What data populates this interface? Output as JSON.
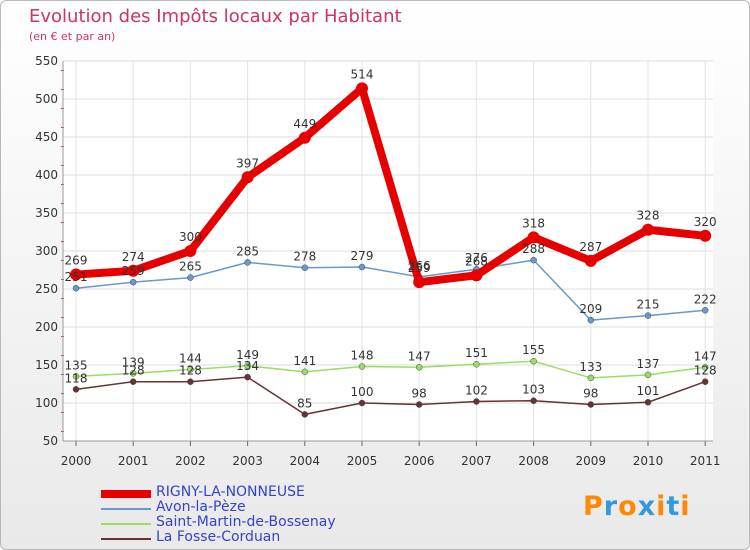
{
  "chart_data": {
    "type": "line",
    "title": "Evolution des Impôts locaux par Habitant",
    "subtitle": "(en € et par an)",
    "categories": [
      "2000",
      "2001",
      "2002",
      "2003",
      "2004",
      "2005",
      "2006",
      "2007",
      "2008",
      "2009",
      "2010",
      "2011"
    ],
    "y_ticks": [
      50,
      100,
      150,
      200,
      250,
      300,
      350,
      400,
      450,
      500,
      550
    ],
    "ylim": [
      50,
      550
    ],
    "grid": true,
    "series": [
      {
        "name": "RIGNY-LA-NONNEUSE",
        "color": "#e60000",
        "values": [
          269,
          274,
          300,
          397,
          449,
          514,
          259,
          268,
          318,
          287,
          328,
          320
        ]
      },
      {
        "name": "Avon-la-Pèze",
        "color": "#6699cc",
        "values": [
          251,
          259,
          265,
          285,
          278,
          279,
          266,
          276,
          288,
          209,
          215,
          222
        ]
      },
      {
        "name": "Saint-Martin-de-Bossenay",
        "color": "#99dd66",
        "values": [
          135,
          139,
          144,
          149,
          141,
          148,
          147,
          151,
          155,
          133,
          137,
          147
        ]
      },
      {
        "name": "La Fosse-Corduan",
        "color": "#663333",
        "values": [
          118,
          128,
          128,
          134,
          85,
          100,
          98,
          102,
          103,
          98,
          101,
          128
        ]
      }
    ]
  },
  "logo": {
    "text": "Proxiti",
    "colors": [
      "#ff8800",
      "#3399dd",
      "#ff8800",
      "#3399dd",
      "#ff8800",
      "#3399dd",
      "#ff8800"
    ]
  }
}
